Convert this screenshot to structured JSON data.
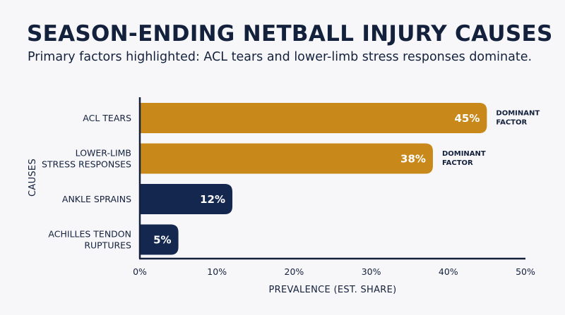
{
  "title": "SEASON-ENDING NETBALL INJURY CAUSES",
  "subtitle": "Primary factors highlighted: ACL tears and lower-limb stress responses dominate.",
  "colors": {
    "highlight": "#c8881a",
    "base": "#14284f",
    "text": "#14213d"
  },
  "chart_data": {
    "type": "bar",
    "orientation": "horizontal",
    "categories": [
      [
        "ACL TEARS"
      ],
      [
        "LOWER-LIMB",
        "STRESS RESPONSES"
      ],
      [
        "ANKLE SPRAINS"
      ],
      [
        "ACHILLES TENDON",
        "RUPTURES"
      ]
    ],
    "values": [
      45,
      38,
      12,
      5
    ],
    "value_labels": [
      "45%",
      "38%",
      "12%",
      "5%"
    ],
    "highlighted": [
      true,
      true,
      false,
      false
    ],
    "annotations": [
      [
        "DOMINANT",
        "FACTOR"
      ],
      [
        "DOMINANT",
        "FACTOR"
      ],
      null,
      null
    ],
    "xlabel": "PREVALENCE (EST. SHARE)",
    "ylabel": "CAUSES",
    "xlim": [
      0,
      50
    ],
    "xticks": [
      0,
      10,
      20,
      30,
      40,
      50
    ],
    "xtick_labels": [
      "0%",
      "10%",
      "20%",
      "30%",
      "40%",
      "50%"
    ],
    "grid": false
  }
}
